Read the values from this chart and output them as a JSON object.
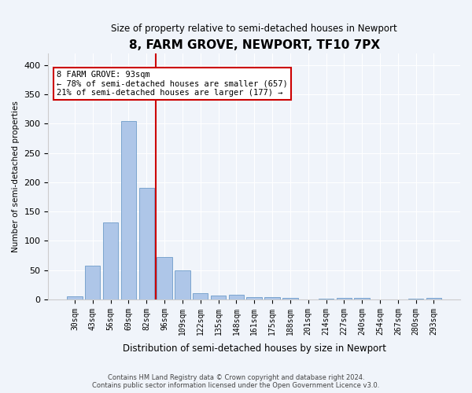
{
  "title": "8, FARM GROVE, NEWPORT, TF10 7PX",
  "subtitle": "Size of property relative to semi-detached houses in Newport",
  "xlabel": "Distribution of semi-detached houses by size in Newport",
  "ylabel": "Number of semi-detached properties",
  "property_size": 93,
  "property_label": "8 FARM GROVE: 93sqm",
  "pct_smaller": 78,
  "count_smaller": 657,
  "pct_larger": 21,
  "count_larger": 177,
  "bar_color": "#aec6e8",
  "bar_edge_color": "#5a8fc2",
  "vline_color": "#cc0000",
  "annotation_box_color": "#cc0000",
  "categories": [
    "30sqm",
    "43sqm",
    "56sqm",
    "69sqm",
    "82sqm",
    "96sqm",
    "109sqm",
    "122sqm",
    "135sqm",
    "148sqm",
    "161sqm",
    "175sqm",
    "188sqm",
    "201sqm",
    "214sqm",
    "227sqm",
    "240sqm",
    "254sqm",
    "267sqm",
    "280sqm",
    "293sqm"
  ],
  "values": [
    5,
    58,
    131,
    305,
    190,
    73,
    50,
    10,
    7,
    8,
    4,
    4,
    2,
    0,
    1,
    3,
    3,
    0,
    0,
    1,
    2
  ],
  "ylim": [
    0,
    420
  ],
  "yticks": [
    0,
    50,
    100,
    150,
    200,
    250,
    300,
    350,
    400
  ],
  "vline_x_index": 4.5,
  "footer1": "Contains HM Land Registry data © Crown copyright and database right 2024.",
  "footer2": "Contains public sector information licensed under the Open Government Licence v3.0.",
  "bg_color": "#f0f4fa",
  "plot_bg_color": "#f0f4fa"
}
